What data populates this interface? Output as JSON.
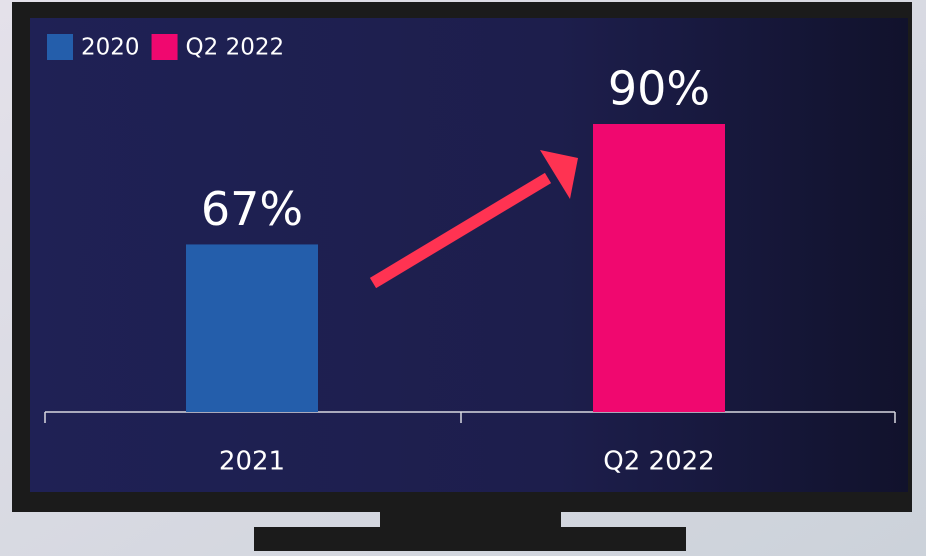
{
  "chart_data": {
    "type": "bar",
    "categories": [
      "2021",
      "Q2 2022"
    ],
    "series": [
      {
        "name": "2020",
        "color": "#245eab",
        "values": [
          67,
          null
        ],
        "value_labels": [
          "67%",
          null
        ]
      },
      {
        "name": "Q2 2022",
        "color": "#f0086f",
        "values": [
          null,
          90
        ],
        "value_labels": [
          null,
          "90%"
        ]
      }
    ],
    "ylim": [
      35,
      90
    ]
  }
}
